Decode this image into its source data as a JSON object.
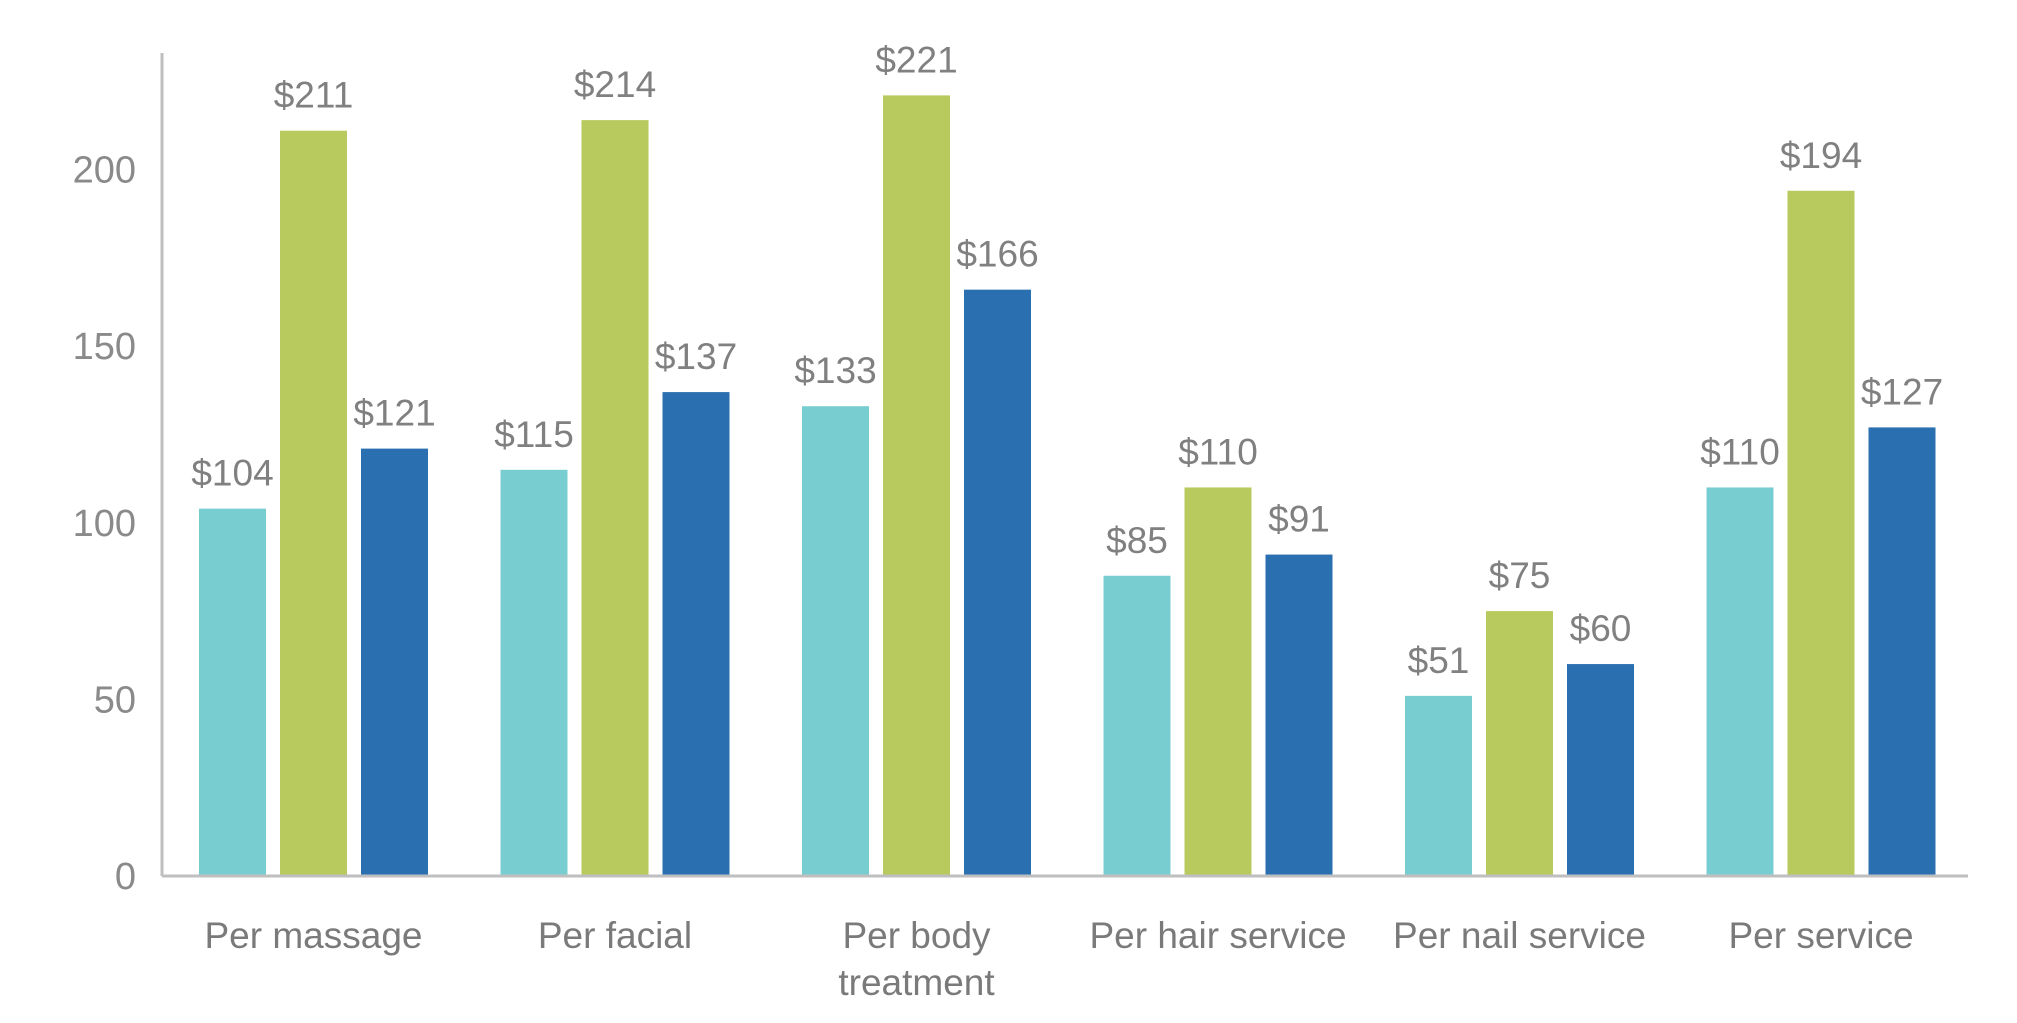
{
  "chart_data": {
    "type": "bar",
    "categories": [
      [
        "Per massage"
      ],
      [
        "Per facial"
      ],
      [
        "Per body",
        "treatment"
      ],
      [
        "Per hair service"
      ],
      [
        "Per nail service"
      ],
      [
        "Per service"
      ]
    ],
    "series": [
      {
        "values": [
          104,
          115,
          133,
          85,
          51,
          110
        ],
        "labels": [
          "$104",
          "$115",
          "$133",
          "$85",
          "$51",
          "$110"
        ],
        "color": "#78cdd0"
      },
      {
        "values": [
          211,
          214,
          221,
          110,
          75,
          194
        ],
        "labels": [
          "$211",
          "$214",
          "$221",
          "$110",
          "$75",
          "$194"
        ],
        "color": "#b8ca5e"
      },
      {
        "values": [
          121,
          137,
          166,
          91,
          60,
          127
        ],
        "labels": [
          "$121",
          "$137",
          "$166",
          "$91",
          "$60",
          "$127"
        ],
        "color": "#2a6fb0"
      }
    ],
    "yticks": [
      0,
      50,
      100,
      150,
      200
    ],
    "ylim": [
      0,
      233
    ],
    "grid": false,
    "legend": "none"
  }
}
